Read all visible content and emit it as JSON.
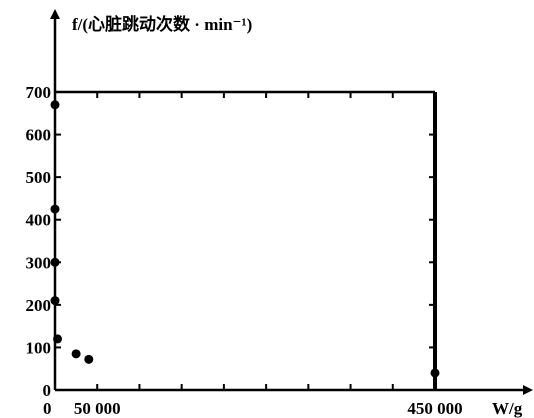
{
  "chart_data": {
    "type": "scatter",
    "title": "",
    "ylabel": "f/(心脏跳动次数 · min⁻¹)",
    "xlabel": "W/g",
    "xlim": [
      0,
      450000
    ],
    "ylim": [
      0,
      700
    ],
    "x_ticks": [
      {
        "value": 0,
        "label": "0"
      },
      {
        "value": 50000,
        "label": "50 000"
      },
      {
        "value": 450000,
        "label": "450 000"
      }
    ],
    "y_ticks": [
      {
        "value": 0,
        "label": "0"
      },
      {
        "value": 100,
        "label": "100"
      },
      {
        "value": 200,
        "label": "200"
      },
      {
        "value": 300,
        "label": "300"
      },
      {
        "value": 400,
        "label": "400"
      },
      {
        "value": 500,
        "label": "500"
      },
      {
        "value": 600,
        "label": "600"
      },
      {
        "value": 700,
        "label": "700"
      }
    ],
    "grid": false,
    "frame": true,
    "points": [
      {
        "x": 0,
        "y": 670
      },
      {
        "x": 0,
        "y": 425
      },
      {
        "x": 0,
        "y": 300
      },
      {
        "x": 0,
        "y": 210
      },
      {
        "x": 3000,
        "y": 120
      },
      {
        "x": 25000,
        "y": 85
      },
      {
        "x": 40000,
        "y": 72
      },
      {
        "x": 450000,
        "y": 40
      }
    ]
  }
}
